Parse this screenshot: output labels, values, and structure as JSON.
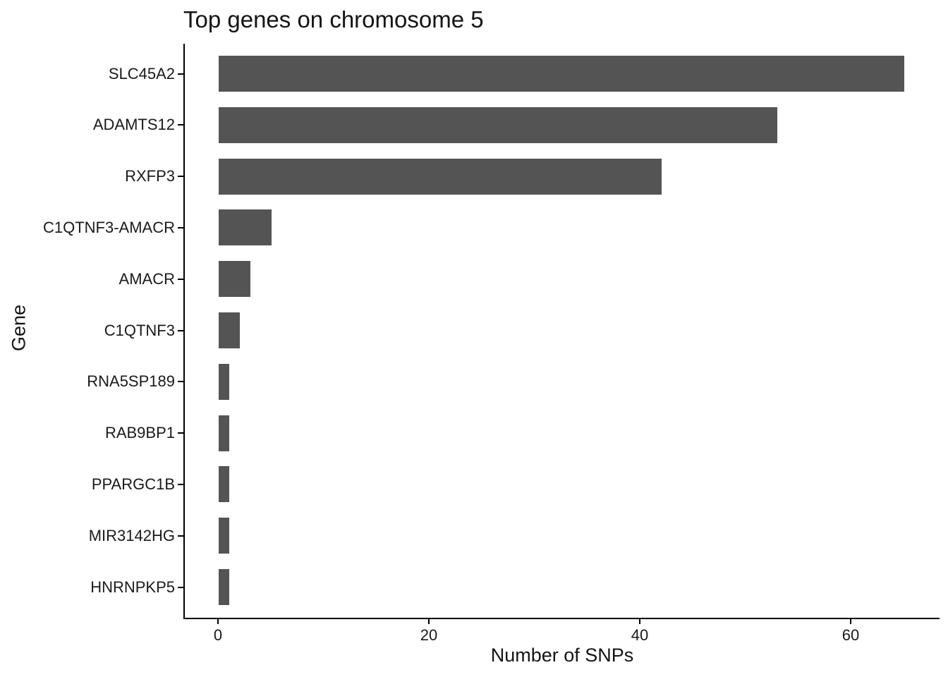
{
  "title": "Top genes on chromosome 5",
  "chart_data": {
    "type": "bar",
    "orientation": "horizontal",
    "title": "Top genes on chromosome 5",
    "xlabel": "Number of SNPs",
    "ylabel": "Gene",
    "categories": [
      "SLC45A2",
      "ADAMTS12",
      "RXFP3",
      "C1QTNF3-AMACR",
      "AMACR",
      "C1QTNF3",
      "RNA5SP189",
      "RAB9BP1",
      "PPARGC1B",
      "MIR3142HG",
      "HNRNPKP5"
    ],
    "values": [
      65,
      53,
      42,
      5,
      3,
      2,
      1,
      1,
      1,
      1,
      1
    ],
    "x_ticks": [
      0,
      20,
      40,
      60
    ],
    "xlim": [
      -3.25,
      68.25
    ],
    "grid": false,
    "legend": false,
    "bar_color": "#545454",
    "axis_color": "#000000",
    "text_color": "#1a1a1a",
    "background": "#ffffff"
  }
}
